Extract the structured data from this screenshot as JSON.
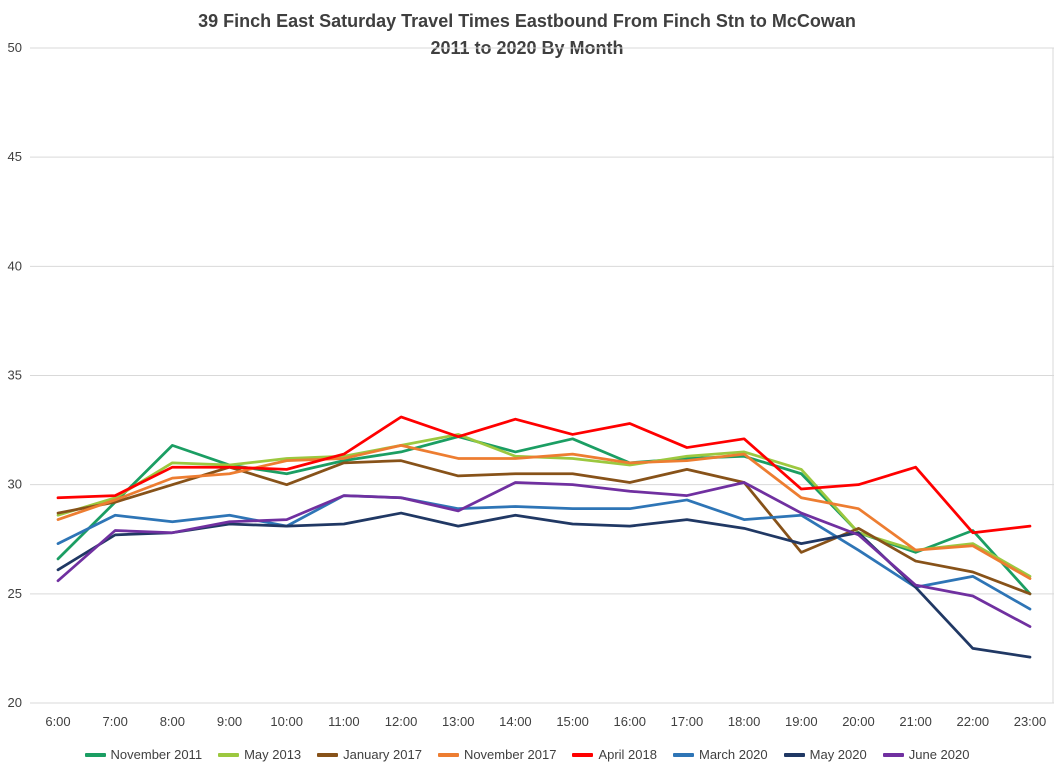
{
  "chart_data": {
    "type": "line",
    "title": "39 Finch East Saturday Travel Times Eastbound From Finch Stn to McCowan 2011 to 2020 By Month",
    "title_lines": [
      "39 Finch East Saturday Travel Times Eastbound From Finch Stn to McCowan",
      "2011 to 2020 By Month"
    ],
    "xlabel": "",
    "ylabel": "",
    "x": [
      "6:00",
      "7:00",
      "8:00",
      "9:00",
      "10:00",
      "11:00",
      "12:00",
      "13:00",
      "14:00",
      "15:00",
      "16:00",
      "17:00",
      "18:00",
      "19:00",
      "20:00",
      "21:00",
      "22:00",
      "23:00"
    ],
    "ylim": [
      20,
      50
    ],
    "yticks": [
      20,
      25,
      30,
      35,
      40,
      45,
      50
    ],
    "grid": "horizontal",
    "grid_color": "#d9d9d9",
    "text_color": "#404040",
    "legend_position": "bottom",
    "series": [
      {
        "name": "November 2011",
        "color": "#1b9e63",
        "values": [
          26.6,
          29.2,
          31.8,
          30.9,
          30.5,
          31.1,
          31.5,
          32.2,
          31.5,
          32.1,
          31.0,
          31.2,
          31.3,
          30.5,
          27.8,
          26.9,
          27.9,
          25.0
        ]
      },
      {
        "name": "May 2013",
        "color": "#9cc83f",
        "values": [
          28.6,
          29.4,
          31.0,
          30.9,
          31.2,
          31.3,
          31.8,
          32.3,
          31.3,
          31.2,
          30.9,
          31.3,
          31.5,
          30.7,
          27.8,
          27.0,
          27.3,
          25.8
        ]
      },
      {
        "name": "January 2017",
        "color": "#875219",
        "values": [
          28.7,
          29.2,
          30.0,
          30.8,
          30.0,
          31.0,
          31.1,
          30.4,
          30.5,
          30.5,
          30.1,
          30.7,
          30.1,
          26.9,
          28.0,
          26.5,
          26.0,
          25.0
        ]
      },
      {
        "name": "November 2017",
        "color": "#ed7d31",
        "values": [
          28.4,
          29.3,
          30.3,
          30.5,
          31.1,
          31.2,
          31.8,
          31.2,
          31.2,
          31.4,
          31.0,
          31.1,
          31.4,
          29.4,
          28.9,
          27.0,
          27.2,
          25.7
        ]
      },
      {
        "name": "April 2018",
        "color": "#ff0000",
        "values": [
          29.4,
          29.5,
          30.8,
          30.8,
          30.7,
          31.4,
          33.1,
          32.2,
          33.0,
          32.3,
          32.8,
          31.7,
          32.1,
          29.8,
          30.0,
          30.8,
          27.8,
          28.1
        ]
      },
      {
        "name": "March 2020",
        "color": "#2e75b6",
        "values": [
          27.3,
          28.6,
          28.3,
          28.6,
          28.1,
          29.5,
          29.4,
          28.9,
          29.0,
          28.9,
          28.9,
          29.3,
          28.4,
          28.6,
          27.0,
          25.3,
          25.8,
          24.3
        ]
      },
      {
        "name": "May 2020",
        "color": "#203864",
        "values": [
          26.1,
          27.7,
          27.8,
          28.2,
          28.1,
          28.2,
          28.7,
          28.1,
          28.6,
          28.2,
          28.1,
          28.4,
          28.0,
          27.3,
          27.8,
          25.3,
          22.5,
          22.1
        ]
      },
      {
        "name": "June 2020",
        "color": "#7030a0",
        "values": [
          25.6,
          27.9,
          27.8,
          28.3,
          28.4,
          29.5,
          29.4,
          28.8,
          30.1,
          30.0,
          29.7,
          29.5,
          30.1,
          28.7,
          27.7,
          25.4,
          24.9,
          23.5
        ]
      }
    ]
  }
}
